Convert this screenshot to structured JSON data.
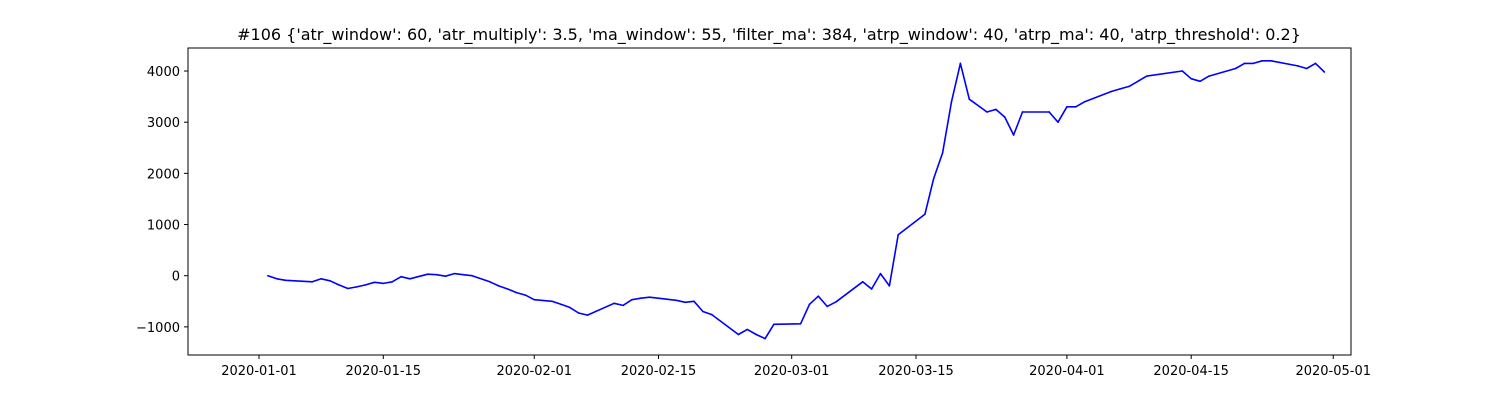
{
  "chart_data": {
    "type": "line",
    "title": "#106 {'atr_window': 60, 'atr_multiply': 3.5, 'ma_window': 55, 'filter_ma': 384, 'atrp_window': 40, 'atrp_ma': 40, 'atrp_threshold': 0.2}",
    "xlabel": "",
    "ylabel": "",
    "xlim": [
      "2019-12-24",
      "2020-05-03"
    ],
    "ylim": [
      -1550,
      4450
    ],
    "grid": false,
    "x_ticks": [
      "2020-01-01",
      "2020-01-15",
      "2020-02-01",
      "2020-02-15",
      "2020-03-01",
      "2020-03-15",
      "2020-04-01",
      "2020-04-15",
      "2020-05-01"
    ],
    "y_ticks": [
      -1000,
      0,
      1000,
      2000,
      3000,
      4000
    ],
    "colors": {
      "line": "#0000ff",
      "axes": "#000000",
      "background": "#ffffff"
    },
    "series": [
      {
        "x": [
          "2020-01-02",
          "2020-01-03",
          "2020-01-04",
          "2020-01-07",
          "2020-01-08",
          "2020-01-09",
          "2020-01-10",
          "2020-01-11",
          "2020-01-12",
          "2020-01-13",
          "2020-01-14",
          "2020-01-15",
          "2020-01-16",
          "2020-01-17",
          "2020-01-18",
          "2020-01-20",
          "2020-01-21",
          "2020-01-22",
          "2020-01-23",
          "2020-01-24",
          "2020-01-25",
          "2020-01-27",
          "2020-01-28",
          "2020-01-29",
          "2020-01-30",
          "2020-01-31",
          "2020-02-01",
          "2020-02-03",
          "2020-02-04",
          "2020-02-05",
          "2020-02-06",
          "2020-02-07",
          "2020-02-10",
          "2020-02-11",
          "2020-02-12",
          "2020-02-13",
          "2020-02-14",
          "2020-02-17",
          "2020-02-18",
          "2020-02-19",
          "2020-02-20",
          "2020-02-21",
          "2020-02-24",
          "2020-02-25",
          "2020-02-26",
          "2020-02-27",
          "2020-02-28",
          "2020-03-02",
          "2020-03-03",
          "2020-03-04",
          "2020-03-05",
          "2020-03-06",
          "2020-03-09",
          "2020-03-10",
          "2020-03-11",
          "2020-03-12",
          "2020-03-13",
          "2020-03-16",
          "2020-03-17",
          "2020-03-18",
          "2020-03-19",
          "2020-03-20",
          "2020-03-21",
          "2020-03-23",
          "2020-03-24",
          "2020-03-25",
          "2020-03-26",
          "2020-03-27",
          "2020-03-30",
          "2020-03-31",
          "2020-04-01",
          "2020-04-02",
          "2020-04-03",
          "2020-04-06",
          "2020-04-07",
          "2020-04-08",
          "2020-04-09",
          "2020-04-10",
          "2020-04-14",
          "2020-04-15",
          "2020-04-16",
          "2020-04-17",
          "2020-04-20",
          "2020-04-21",
          "2020-04-22",
          "2020-04-23",
          "2020-04-24",
          "2020-04-27",
          "2020-04-28",
          "2020-04-29",
          "2020-04-30"
        ],
        "values": [
          0,
          -60,
          -90,
          -120,
          -60,
          -100,
          -180,
          -250,
          -220,
          -180,
          -130,
          -150,
          -120,
          -20,
          -60,
          30,
          20,
          -10,
          40,
          20,
          0,
          -120,
          -200,
          -260,
          -330,
          -380,
          -470,
          -500,
          -560,
          -620,
          -730,
          -770,
          -540,
          -580,
          -470,
          -440,
          -420,
          -480,
          -520,
          -500,
          -700,
          -760,
          -1150,
          -1050,
          -1150,
          -1230,
          -950,
          -940,
          -560,
          -400,
          -600,
          -510,
          -120,
          -260,
          40,
          -200,
          800,
          1200,
          1900,
          2400,
          3400,
          4150,
          3450,
          3200,
          3250,
          3100,
          2750,
          3200,
          3200,
          3000,
          3300,
          3300,
          3400,
          3600,
          3650,
          3700,
          3800,
          3900,
          4000,
          3850,
          3800,
          3900,
          4050,
          4150,
          4150,
          4200,
          4200,
          4100,
          4050,
          4150,
          3980
        ]
      }
    ]
  }
}
